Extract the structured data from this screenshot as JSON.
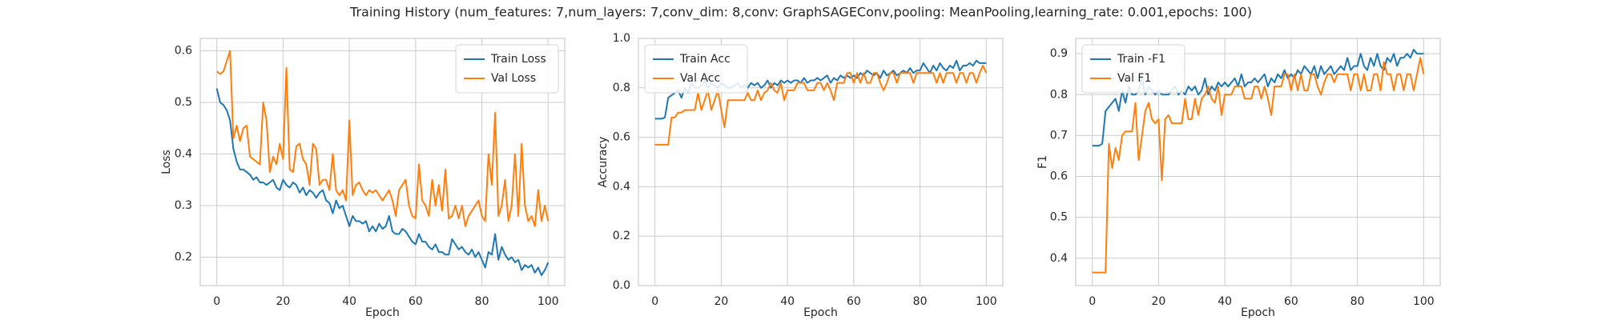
{
  "title": "Training History (num_features: 7,num_layers: 7,conv_dim: 8,conv: GraphSAGEConv,pooling: MeanPooling,learning_rate: 0.001,epochs: 100)",
  "chart_data": [
    {
      "type": "line",
      "xlabel": "Epoch",
      "ylabel": "Loss",
      "legend": "upper right",
      "grid": true,
      "xlim": [
        -5,
        105
      ],
      "xticks": [
        0,
        20,
        40,
        60,
        80,
        100
      ],
      "ylim": [
        0.145,
        0.624
      ],
      "yticks": [
        0.2,
        0.3,
        0.4,
        0.5,
        0.6
      ],
      "x": [
        0,
        1,
        2,
        3,
        4,
        5,
        6,
        7,
        8,
        9,
        10,
        11,
        12,
        13,
        14,
        15,
        16,
        17,
        18,
        19,
        20,
        21,
        22,
        23,
        24,
        25,
        26,
        27,
        28,
        29,
        30,
        31,
        32,
        33,
        34,
        35,
        36,
        37,
        38,
        39,
        40,
        41,
        42,
        43,
        44,
        45,
        46,
        47,
        48,
        49,
        50,
        51,
        52,
        53,
        54,
        55,
        56,
        57,
        58,
        59,
        60,
        61,
        62,
        63,
        64,
        65,
        66,
        67,
        68,
        69,
        70,
        71,
        72,
        73,
        74,
        75,
        76,
        77,
        78,
        79,
        80,
        81,
        82,
        83,
        84,
        85,
        86,
        87,
        88,
        89,
        90,
        91,
        92,
        93,
        94,
        95,
        96,
        97,
        98,
        99,
        100
      ],
      "series": [
        {
          "name": "Train Loss",
          "color": "#1f77b4",
          "values": [
            0.527,
            0.5,
            0.495,
            0.485,
            0.465,
            0.41,
            0.385,
            0.37,
            0.37,
            0.365,
            0.36,
            0.35,
            0.355,
            0.345,
            0.345,
            0.34,
            0.345,
            0.35,
            0.335,
            0.33,
            0.35,
            0.34,
            0.335,
            0.345,
            0.34,
            0.325,
            0.335,
            0.32,
            0.33,
            0.325,
            0.315,
            0.325,
            0.33,
            0.31,
            0.305,
            0.285,
            0.31,
            0.295,
            0.3,
            0.28,
            0.26,
            0.28,
            0.27,
            0.27,
            0.265,
            0.27,
            0.25,
            0.26,
            0.25,
            0.265,
            0.255,
            0.26,
            0.28,
            0.25,
            0.245,
            0.245,
            0.255,
            0.25,
            0.24,
            0.23,
            0.225,
            0.245,
            0.23,
            0.23,
            0.22,
            0.215,
            0.225,
            0.21,
            0.21,
            0.205,
            0.205,
            0.235,
            0.225,
            0.215,
            0.22,
            0.21,
            0.205,
            0.215,
            0.2,
            0.21,
            0.195,
            0.18,
            0.21,
            0.205,
            0.245,
            0.195,
            0.22,
            0.205,
            0.195,
            0.2,
            0.19,
            0.195,
            0.175,
            0.185,
            0.18,
            0.185,
            0.17,
            0.18,
            0.165,
            0.175,
            0.19
          ]
        },
        {
          "name": "Val Loss",
          "color": "#ff7f0e",
          "values": [
            0.56,
            0.555,
            0.56,
            0.58,
            0.6,
            0.43,
            0.455,
            0.425,
            0.45,
            0.455,
            0.395,
            0.39,
            0.385,
            0.38,
            0.5,
            0.465,
            0.365,
            0.395,
            0.38,
            0.42,
            0.39,
            0.567,
            0.37,
            0.365,
            0.415,
            0.42,
            0.39,
            0.38,
            0.34,
            0.42,
            0.41,
            0.34,
            0.35,
            0.35,
            0.33,
            0.4,
            0.33,
            0.32,
            0.33,
            0.31,
            0.465,
            0.32,
            0.34,
            0.345,
            0.33,
            0.32,
            0.33,
            0.325,
            0.33,
            0.32,
            0.31,
            0.32,
            0.33,
            0.31,
            0.28,
            0.33,
            0.34,
            0.35,
            0.3,
            0.28,
            0.275,
            0.38,
            0.31,
            0.3,
            0.28,
            0.35,
            0.3,
            0.34,
            0.29,
            0.37,
            0.275,
            0.28,
            0.3,
            0.275,
            0.3,
            0.26,
            0.28,
            0.29,
            0.3,
            0.31,
            0.28,
            0.27,
            0.4,
            0.34,
            0.48,
            0.28,
            0.3,
            0.35,
            0.27,
            0.3,
            0.4,
            0.28,
            0.42,
            0.3,
            0.27,
            0.28,
            0.26,
            0.33,
            0.27,
            0.3,
            0.27
          ]
        }
      ]
    },
    {
      "type": "line",
      "xlabel": "Epoch",
      "ylabel": "Accuracy",
      "legend": "upper left",
      "grid": true,
      "xlim": [
        -5,
        105
      ],
      "xticks": [
        0,
        20,
        40,
        60,
        80,
        100
      ],
      "ylim": [
        0,
        1
      ],
      "yticks": [
        {
          "value": 0,
          "label": "0.0"
        },
        0.2,
        0.4,
        0.6,
        0.8,
        {
          "value": 1,
          "label": "1.0"
        }
      ],
      "x": [
        0,
        1,
        2,
        3,
        4,
        5,
        6,
        7,
        8,
        9,
        10,
        11,
        12,
        13,
        14,
        15,
        16,
        17,
        18,
        19,
        20,
        21,
        22,
        23,
        24,
        25,
        26,
        27,
        28,
        29,
        30,
        31,
        32,
        33,
        34,
        35,
        36,
        37,
        38,
        39,
        40,
        41,
        42,
        43,
        44,
        45,
        46,
        47,
        48,
        49,
        50,
        51,
        52,
        53,
        54,
        55,
        56,
        57,
        58,
        59,
        60,
        61,
        62,
        63,
        64,
        65,
        66,
        67,
        68,
        69,
        70,
        71,
        72,
        73,
        74,
        75,
        76,
        77,
        78,
        79,
        80,
        81,
        82,
        83,
        84,
        85,
        86,
        87,
        88,
        89,
        90,
        91,
        92,
        93,
        94,
        95,
        96,
        97,
        98,
        99,
        100
      ],
      "series": [
        {
          "name": "Train Acc",
          "color": "#1f77b4",
          "values": [
            0.675,
            0.675,
            0.675,
            0.68,
            0.76,
            0.77,
            0.78,
            0.79,
            0.76,
            0.8,
            0.78,
            0.82,
            0.8,
            0.8,
            0.81,
            0.83,
            0.8,
            0.82,
            0.81,
            0.8,
            0.82,
            0.81,
            0.8,
            0.8,
            0.81,
            0.82,
            0.8,
            0.81,
            0.8,
            0.82,
            0.81,
            0.82,
            0.8,
            0.81,
            0.83,
            0.8,
            0.82,
            0.81,
            0.83,
            0.82,
            0.83,
            0.82,
            0.83,
            0.83,
            0.82,
            0.84,
            0.82,
            0.83,
            0.83,
            0.84,
            0.83,
            0.84,
            0.85,
            0.82,
            0.84,
            0.83,
            0.85,
            0.84,
            0.85,
            0.84,
            0.85,
            0.84,
            0.86,
            0.85,
            0.87,
            0.86,
            0.85,
            0.86,
            0.84,
            0.87,
            0.85,
            0.86,
            0.87,
            0.85,
            0.86,
            0.87,
            0.86,
            0.88,
            0.86,
            0.87,
            0.87,
            0.9,
            0.88,
            0.86,
            0.89,
            0.87,
            0.9,
            0.88,
            0.87,
            0.89,
            0.88,
            0.91,
            0.87,
            0.89,
            0.89,
            0.9,
            0.89,
            0.91,
            0.9,
            0.9,
            0.9
          ]
        },
        {
          "name": "Val Acc",
          "color": "#ff7f0e",
          "values": [
            0.57,
            0.57,
            0.57,
            0.57,
            0.57,
            0.68,
            0.68,
            0.7,
            0.7,
            0.71,
            0.71,
            0.71,
            0.71,
            0.78,
            0.71,
            0.75,
            0.79,
            0.71,
            0.75,
            0.79,
            0.71,
            0.64,
            0.75,
            0.75,
            0.75,
            0.75,
            0.75,
            0.75,
            0.78,
            0.75,
            0.75,
            0.79,
            0.75,
            0.78,
            0.79,
            0.82,
            0.79,
            0.78,
            0.82,
            0.75,
            0.79,
            0.79,
            0.79,
            0.82,
            0.82,
            0.82,
            0.79,
            0.79,
            0.79,
            0.82,
            0.82,
            0.79,
            0.82,
            0.79,
            0.75,
            0.82,
            0.82,
            0.82,
            0.86,
            0.86,
            0.82,
            0.86,
            0.82,
            0.86,
            0.82,
            0.82,
            0.86,
            0.86,
            0.82,
            0.79,
            0.82,
            0.86,
            0.86,
            0.82,
            0.86,
            0.86,
            0.86,
            0.86,
            0.82,
            0.86,
            0.86,
            0.86,
            0.86,
            0.86,
            0.86,
            0.82,
            0.86,
            0.82,
            0.86,
            0.86,
            0.86,
            0.82,
            0.86,
            0.86,
            0.82,
            0.86,
            0.86,
            0.82,
            0.86,
            0.89,
            0.86
          ]
        }
      ]
    },
    {
      "type": "line",
      "xlabel": "Epoch",
      "ylabel": "F1",
      "legend": "upper left",
      "grid": true,
      "xlim": [
        -5,
        105
      ],
      "xticks": [
        0,
        20,
        40,
        60,
        80,
        100
      ],
      "ylim": [
        0.333,
        0.9375
      ],
      "yticks": [
        0.4,
        0.5,
        0.6,
        0.7,
        0.8,
        0.9
      ],
      "x": [
        0,
        1,
        2,
        3,
        4,
        5,
        6,
        7,
        8,
        9,
        10,
        11,
        12,
        13,
        14,
        15,
        16,
        17,
        18,
        19,
        20,
        21,
        22,
        23,
        24,
        25,
        26,
        27,
        28,
        29,
        30,
        31,
        32,
        33,
        34,
        35,
        36,
        37,
        38,
        39,
        40,
        41,
        42,
        43,
        44,
        45,
        46,
        47,
        48,
        49,
        50,
        51,
        52,
        53,
        54,
        55,
        56,
        57,
        58,
        59,
        60,
        61,
        62,
        63,
        64,
        65,
        66,
        67,
        68,
        69,
        70,
        71,
        72,
        73,
        74,
        75,
        76,
        77,
        78,
        79,
        80,
        81,
        82,
        83,
        84,
        85,
        86,
        87,
        88,
        89,
        90,
        91,
        92,
        93,
        94,
        95,
        96,
        97,
        98,
        99,
        100
      ],
      "series": [
        {
          "name": "Train -F1",
          "color": "#1f77b4",
          "values": [
            0.675,
            0.675,
            0.675,
            0.68,
            0.76,
            0.77,
            0.78,
            0.79,
            0.76,
            0.81,
            0.78,
            0.82,
            0.8,
            0.8,
            0.81,
            0.84,
            0.8,
            0.82,
            0.81,
            0.8,
            0.81,
            0.8,
            0.8,
            0.8,
            0.81,
            0.82,
            0.8,
            0.81,
            0.8,
            0.82,
            0.81,
            0.82,
            0.8,
            0.81,
            0.84,
            0.8,
            0.82,
            0.81,
            0.83,
            0.82,
            0.83,
            0.82,
            0.83,
            0.84,
            0.82,
            0.85,
            0.82,
            0.83,
            0.83,
            0.84,
            0.83,
            0.84,
            0.85,
            0.82,
            0.84,
            0.83,
            0.85,
            0.84,
            0.86,
            0.84,
            0.85,
            0.84,
            0.86,
            0.85,
            0.87,
            0.86,
            0.85,
            0.87,
            0.84,
            0.87,
            0.85,
            0.86,
            0.87,
            0.85,
            0.86,
            0.87,
            0.86,
            0.89,
            0.86,
            0.87,
            0.87,
            0.9,
            0.87,
            0.86,
            0.89,
            0.87,
            0.9,
            0.87,
            0.86,
            0.89,
            0.88,
            0.9,
            0.87,
            0.89,
            0.89,
            0.9,
            0.89,
            0.91,
            0.9,
            0.9,
            0.9
          ]
        },
        {
          "name": "Val F1",
          "color": "#ff7f0e",
          "values": [
            0.365,
            0.365,
            0.365,
            0.365,
            0.365,
            0.68,
            0.62,
            0.67,
            0.64,
            0.7,
            0.71,
            0.71,
            0.71,
            0.78,
            0.64,
            0.7,
            0.76,
            0.78,
            0.74,
            0.73,
            0.74,
            0.59,
            0.74,
            0.75,
            0.73,
            0.73,
            0.73,
            0.73,
            0.79,
            0.74,
            0.74,
            0.79,
            0.75,
            0.79,
            0.8,
            0.82,
            0.79,
            0.78,
            0.82,
            0.75,
            0.8,
            0.8,
            0.8,
            0.82,
            0.82,
            0.82,
            0.79,
            0.79,
            0.79,
            0.82,
            0.82,
            0.79,
            0.82,
            0.79,
            0.75,
            0.82,
            0.82,
            0.82,
            0.85,
            0.85,
            0.81,
            0.85,
            0.81,
            0.85,
            0.81,
            0.81,
            0.85,
            0.85,
            0.82,
            0.8,
            0.83,
            0.85,
            0.85,
            0.83,
            0.85,
            0.85,
            0.85,
            0.85,
            0.81,
            0.85,
            0.85,
            0.81,
            0.85,
            0.81,
            0.81,
            0.85,
            0.85,
            0.81,
            0.88,
            0.85,
            0.85,
            0.81,
            0.85,
            0.85,
            0.81,
            0.85,
            0.85,
            0.81,
            0.85,
            0.89,
            0.85
          ]
        }
      ]
    }
  ]
}
